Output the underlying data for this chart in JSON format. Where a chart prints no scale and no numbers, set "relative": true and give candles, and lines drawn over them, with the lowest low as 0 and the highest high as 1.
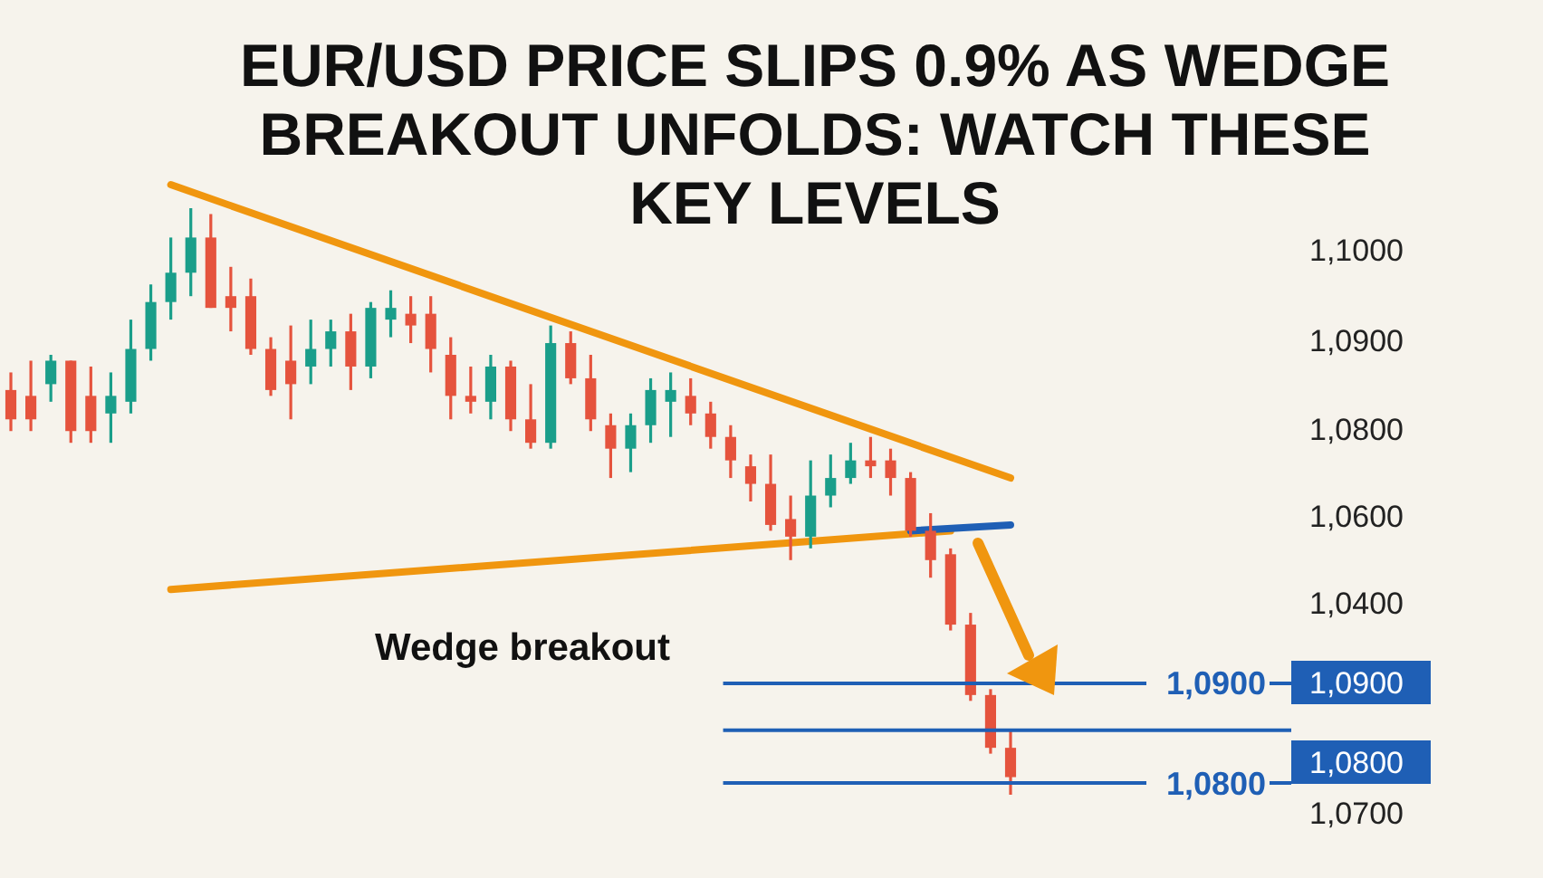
{
  "chart_data": {
    "type": "candlestick",
    "title": "EUR/USD PRICE SLIPS 0.9% AS WEDGE BREAKOUT UNFOLDS: WATCH THESE KEY LEVELS",
    "relative": true,
    "categories": [
      null,
      null,
      null,
      null,
      null,
      null,
      null,
      null,
      null,
      null,
      null,
      null,
      null,
      null,
      null,
      null,
      null,
      null,
      null,
      null,
      null,
      null,
      null,
      null,
      null,
      null,
      null,
      null,
      null,
      null,
      null,
      null,
      null,
      null,
      null,
      null,
      null,
      null,
      null,
      null,
      null,
      null,
      null,
      null,
      null,
      null,
      null,
      null,
      null,
      null,
      null
    ],
    "ohlc": [
      [
        0.69,
        0.72,
        0.62,
        0.64
      ],
      [
        0.68,
        0.74,
        0.62,
        0.64
      ],
      [
        0.7,
        0.75,
        0.67,
        0.74
      ],
      [
        0.74,
        0.74,
        0.6,
        0.62
      ],
      [
        0.68,
        0.73,
        0.6,
        0.62
      ],
      [
        0.65,
        0.72,
        0.6,
        0.68
      ],
      [
        0.67,
        0.81,
        0.65,
        0.76
      ],
      [
        0.76,
        0.87,
        0.74,
        0.84
      ],
      [
        0.84,
        0.95,
        0.81,
        0.89
      ],
      [
        0.89,
        1,
        0.85,
        0.95
      ],
      [
        0.95,
        0.99,
        0.83,
        0.83
      ],
      [
        0.85,
        0.9,
        0.79,
        0.83
      ],
      [
        0.85,
        0.88,
        0.75,
        0.76
      ],
      [
        0.76,
        0.78,
        0.68,
        0.69
      ],
      [
        0.74,
        0.8,
        0.64,
        0.7
      ],
      [
        0.73,
        0.81,
        0.7,
        0.76
      ],
      [
        0.76,
        0.81,
        0.73,
        0.79
      ],
      [
        0.79,
        0.82,
        0.69,
        0.73
      ],
      [
        0.73,
        0.84,
        0.71,
        0.83
      ],
      [
        0.81,
        0.86,
        0.78,
        0.83
      ],
      [
        0.82,
        0.85,
        0.77,
        0.8
      ],
      [
        0.82,
        0.85,
        0.72,
        0.76
      ],
      [
        0.75,
        0.78,
        0.64,
        0.68
      ],
      [
        0.68,
        0.73,
        0.65,
        0.67
      ],
      [
        0.67,
        0.75,
        0.64,
        0.73
      ],
      [
        0.73,
        0.74,
        0.62,
        0.64
      ],
      [
        0.64,
        0.7,
        0.59,
        0.6
      ],
      [
        0.6,
        0.8,
        0.59,
        0.77
      ],
      [
        0.77,
        0.79,
        0.7,
        0.71
      ],
      [
        0.71,
        0.75,
        0.62,
        0.64
      ],
      [
        0.63,
        0.65,
        0.54,
        0.59
      ],
      [
        0.59,
        0.65,
        0.55,
        0.63
      ],
      [
        0.63,
        0.71,
        0.6,
        0.69
      ],
      [
        0.67,
        0.72,
        0.61,
        0.69
      ],
      [
        0.68,
        0.71,
        0.63,
        0.65
      ],
      [
        0.65,
        0.67,
        0.59,
        0.61
      ],
      [
        0.61,
        0.63,
        0.54,
        0.57
      ],
      [
        0.56,
        0.58,
        0.5,
        0.53
      ],
      [
        0.53,
        0.58,
        0.45,
        0.46
      ],
      [
        0.47,
        0.51,
        0.4,
        0.44
      ],
      [
        0.44,
        0.57,
        0.42,
        0.51
      ],
      [
        0.51,
        0.58,
        0.49,
        0.54
      ],
      [
        0.54,
        0.6,
        0.53,
        0.57
      ],
      [
        0.57,
        0.61,
        0.54,
        0.56
      ],
      [
        0.57,
        0.59,
        0.51,
        0.54
      ],
      [
        0.54,
        0.55,
        0.44,
        0.45
      ],
      [
        0.45,
        0.48,
        0.37,
        0.4
      ],
      [
        0.41,
        0.42,
        0.28,
        0.29
      ],
      [
        0.29,
        0.31,
        0.16,
        0.17
      ],
      [
        0.17,
        0.18,
        0.07,
        0.08
      ],
      [
        0.08,
        0.11,
        0,
        0.03
      ]
    ],
    "colors": [
      "#e5533d",
      "#e5533d",
      "#1a9e8a",
      "#e5533d",
      "#e5533d",
      "#1a9e8a",
      "#1a9e8a",
      "#1a9e8a",
      "#1a9e8a",
      "#1a9e8a",
      "#e5533d",
      "#e5533d",
      "#e5533d",
      "#e5533d",
      "#e5533d",
      "#1a9e8a",
      "#1a9e8a",
      "#e5533d",
      "#1a9e8a",
      "#1a9e8a",
      "#e5533d",
      "#e5533d",
      "#e5533d",
      "#e5533d",
      "#1a9e8a",
      "#e5533d",
      "#e5533d",
      "#1a9e8a",
      "#e5533d",
      "#e5533d",
      "#e5533d",
      "#1a9e8a",
      "#1a9e8a",
      "#1a9e8a",
      "#e5533d",
      "#e5533d",
      "#e5533d",
      "#e5533d",
      "#e5533d",
      "#e5533d",
      "#1a9e8a",
      "#1a9e8a",
      "#1a9e8a",
      "#e5533d",
      "#e5533d",
      "#e5533d",
      "#e5533d",
      "#e5533d",
      "#e5533d",
      "#e5533d",
      "#e5533d"
    ],
    "series": [
      {
        "type": "line",
        "color": "#f0960f",
        "values": [
          null,
          null,
          null,
          null,
          null,
          null,
          null,
          null,
          1.04,
          null,
          null,
          null,
          null,
          null,
          null,
          null,
          null,
          null,
          null,
          null,
          null,
          null,
          null,
          null,
          null,
          null,
          null,
          null,
          null,
          null,
          null,
          null,
          null,
          null,
          null,
          null,
          null,
          null,
          null,
          null,
          null,
          null,
          null,
          null,
          null,
          null,
          null,
          null,
          null,
          null,
          0.54
        ]
      },
      {
        "type": "line",
        "color": "#f0960f",
        "values": [
          null,
          null,
          null,
          null,
          null,
          null,
          null,
          null,
          0.35,
          null,
          null,
          null,
          null,
          null,
          null,
          null,
          null,
          null,
          null,
          null,
          null,
          null,
          null,
          null,
          null,
          null,
          null,
          null,
          null,
          null,
          null,
          null,
          null,
          null,
          null,
          null,
          null,
          null,
          null,
          null,
          null,
          null,
          null,
          null,
          null,
          null,
          null,
          0.45,
          null,
          null,
          null
        ]
      },
      {
        "type": "line",
        "color": "#1f5fb5",
        "values": [
          null,
          null,
          null,
          null,
          null,
          null,
          null,
          null,
          null,
          null,
          null,
          null,
          null,
          null,
          null,
          null,
          null,
          null,
          null,
          null,
          null,
          null,
          null,
          null,
          null,
          null,
          null,
          null,
          null,
          null,
          null,
          null,
          null,
          null,
          null,
          null,
          null,
          null,
          null,
          null,
          null,
          null,
          null,
          null,
          null,
          0.45,
          null,
          null,
          null,
          null,
          0.46
        ]
      }
    ],
    "ref_lines": [
      {
        "axis": "y",
        "value": 0.19,
        "label": "1,0900",
        "color": "#1f5fb5"
      },
      {
        "axis": "y",
        "value": 0.11,
        "color": "#1f5fb5"
      },
      {
        "axis": "y",
        "value": 0.02,
        "label": "1,0800",
        "color": "#1f5fb5"
      }
    ],
    "annotations": [
      "Wedge breakout",
      "1,1000",
      "1,0900",
      "1,0800",
      "1,0600",
      "1,0400",
      "1,0900",
      "1,0800",
      "1,0700"
    ]
  }
}
